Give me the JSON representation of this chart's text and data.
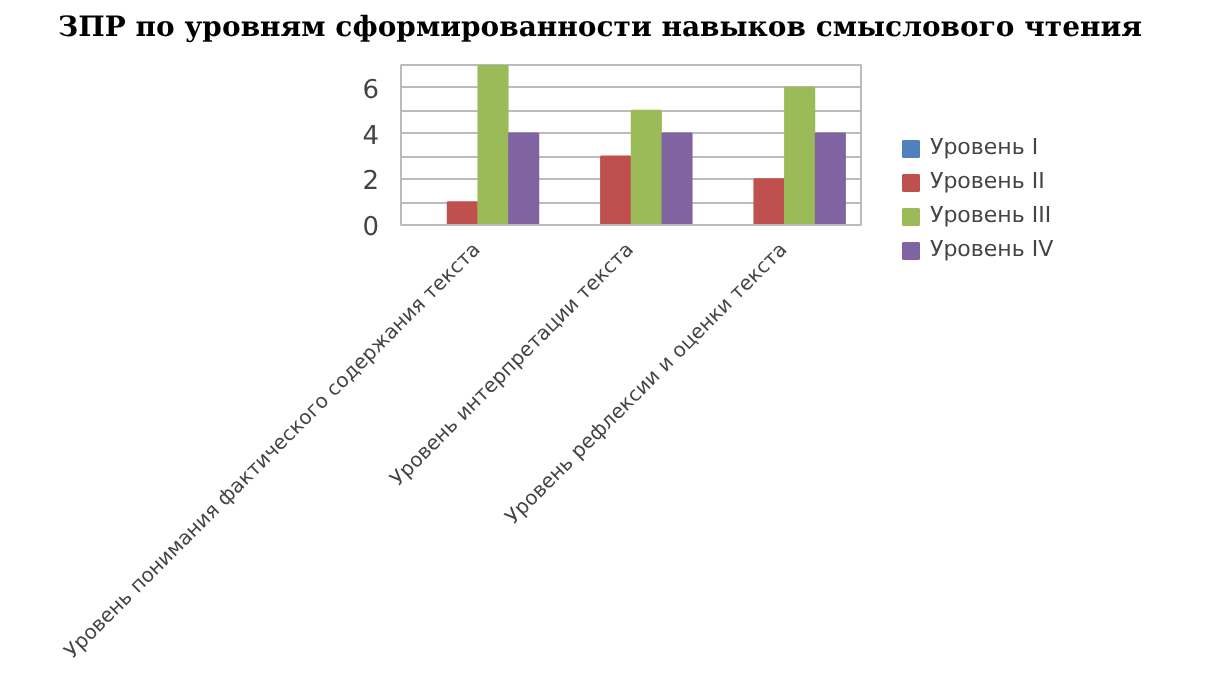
{
  "chart_data": {
    "type": "bar",
    "title": "ЗПР по уровням сформированности навыков смыслового чтения",
    "categories": [
      "Уровень понимания фактического содержания текста",
      "Уровень интерпретации текста",
      "Уровень рефлексии и оценки текста"
    ],
    "series": [
      {
        "name": "Уровень I",
        "color": "#4f81bd",
        "values": [
          0,
          0,
          0
        ]
      },
      {
        "name": "Уровень II",
        "color": "#c0504d",
        "values": [
          1,
          3,
          2
        ]
      },
      {
        "name": "Уровень III",
        "color": "#9bbb59",
        "values": [
          7,
          5,
          6
        ]
      },
      {
        "name": "Уровень IV",
        "color": "#8064a2",
        "values": [
          4,
          4,
          4
        ]
      }
    ],
    "ylim": [
      0,
      7
    ],
    "yticks": [
      0,
      {
        "value": 1,
        "label": null
      },
      2,
      {
        "value": 3,
        "label": null
      },
      4,
      {
        "value": 5,
        "label": null
      },
      6,
      {
        "value": 7,
        "label": null
      }
    ],
    "grid": "y",
    "legend": "right"
  }
}
